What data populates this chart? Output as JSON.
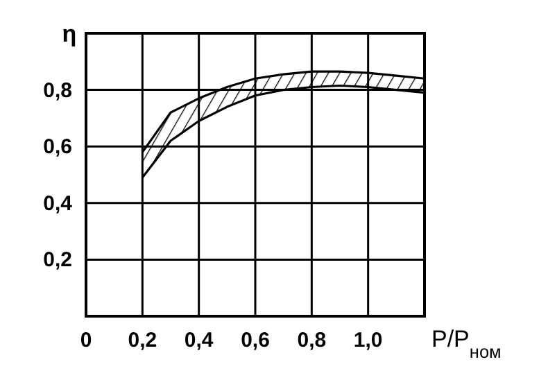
{
  "chart_data": {
    "type": "line",
    "xlabel": "P/P$_{ном}$",
    "ylabel": "η",
    "x": [
      0.2,
      0.3,
      0.4,
      0.5,
      0.6,
      0.7,
      0.8,
      0.9,
      1.0,
      1.1,
      1.2
    ],
    "series": [
      {
        "color": "#000000",
        "values": [
          0.58,
          0.72,
          0.77,
          0.81,
          0.84,
          0.855,
          0.865,
          0.865,
          0.86,
          0.85,
          0.84
        ]
      },
      {
        "color": "#000000",
        "values": [
          0.49,
          0.62,
          0.69,
          0.74,
          0.78,
          0.8,
          0.81,
          0.815,
          0.81,
          0.8,
          0.79
        ]
      }
    ],
    "xlim": [
      0,
      1.2
    ],
    "ylim": [
      0,
      1
    ],
    "xticks": [
      0,
      {
        "value": 0.2,
        "label": "0,2"
      },
      {
        "value": 0.4,
        "label": "0,4"
      },
      {
        "value": 0.6,
        "label": "0,6"
      },
      {
        "value": 0.8,
        "label": "0,8"
      },
      {
        "value": 1.0,
        "label": "1,0"
      },
      {
        "value": 1.2,
        "label": null
      }
    ],
    "yticks": [
      {
        "value": 0.2,
        "label": "0,2"
      },
      {
        "value": 0.4,
        "label": "0,4"
      },
      {
        "value": 0.6,
        "label": "0,6"
      },
      {
        "value": 0.8,
        "label": "0,8"
      },
      {
        "value": 1.0,
        "label": null
      }
    ],
    "grid": true,
    "marker": "none",
    "line_style": "solid"
  }
}
